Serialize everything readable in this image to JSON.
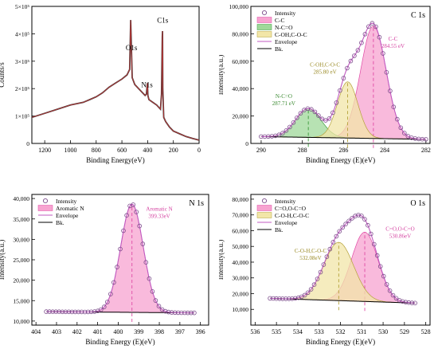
{
  "chart_data": [
    {
      "id": "survey",
      "type": "line",
      "xlabel": "Binding Energy(eV)",
      "ylabel": "Counts/s",
      "xlim": [
        1300,
        0
      ],
      "ylim": [
        0,
        500000
      ],
      "xticks": [
        1200,
        1000,
        800,
        600,
        400,
        200,
        0
      ],
      "yticks": [
        {
          "v": 0,
          "label": "0"
        },
        {
          "v": 100000,
          "label": "1×10⁵"
        },
        {
          "v": 200000,
          "label": "2×10⁵"
        },
        {
          "v": 300000,
          "label": "3×10⁵"
        },
        {
          "v": 400000,
          "label": "4×10⁵"
        },
        {
          "v": 500000,
          "label": "5×10⁵"
        }
      ],
      "colors": {
        "raw": "#404040",
        "fit": "#c03030"
      },
      "series": [
        {
          "x": [
            1300,
            1200,
            1100,
            1000,
            900,
            850,
            800,
            750,
            700,
            650,
            600,
            560,
            540,
            532,
            525,
            520,
            500,
            470,
            450,
            420,
            410,
            402,
            398,
            390,
            360,
            330,
            300,
            292,
            286,
            284,
            282,
            275,
            260,
            230,
            200,
            150,
            100,
            50,
            0
          ],
          "values": [
            95000,
            110000,
            125000,
            140000,
            150000,
            160000,
            170000,
            185000,
            205000,
            220000,
            235000,
            250000,
            270000,
            450000,
            330000,
            240000,
            215000,
            200000,
            190000,
            175000,
            180000,
            220000,
            175000,
            160000,
            150000,
            140000,
            125000,
            180000,
            390000,
            410000,
            200000,
            95000,
            80000,
            60000,
            45000,
            35000,
            25000,
            18000,
            12000
          ]
        }
      ],
      "annotations": [
        {
          "text": "C1s",
          "x": 283,
          "y": 440000
        },
        {
          "text": "O1s",
          "x": 525,
          "y": 340000
        },
        {
          "text": "N1s",
          "x": 405,
          "y": 205000
        }
      ]
    },
    {
      "id": "c1s",
      "type": "line",
      "title": "C 1s",
      "xlabel": "Binding Energy (E)(eV)",
      "ylabel": "Intensity(a.u.)",
      "xlim": [
        290.5,
        281.8
      ],
      "ylim": [
        0,
        100000
      ],
      "xticks": [
        290,
        288,
        286,
        284,
        282
      ],
      "yticks": [
        0,
        20000,
        40000,
        60000,
        80000,
        100000
      ],
      "legend": {
        "position": "top-left",
        "items": [
          "Intensity",
          "C-C",
          "N-C=O",
          "C-OH,C-O-C",
          "Envelope",
          "Bk."
        ]
      },
      "background": [
        [
          290,
          5000
        ],
        [
          282,
          3000
        ]
      ],
      "peaks": [
        {
          "name": "C-C",
          "center": 284.55,
          "height": 82000,
          "sigma": 0.62,
          "color": "#f7a3d0",
          "line": "#e04aa5"
        },
        {
          "name": "N-C=O",
          "center": 287.71,
          "height": 21000,
          "sigma": 0.62,
          "color": "#9fd89a",
          "line": "#3a9a3a"
        },
        {
          "name": "C-OH,C-O-C",
          "center": 285.8,
          "height": 41000,
          "sigma": 0.5,
          "color": "#f2e6a8",
          "line": "#b5a23a"
        }
      ],
      "labels": [
        {
          "lines": [
            "C-C",
            "284.55 eV"
          ],
          "x": 283.6,
          "y": 75000,
          "color": "#d43f9f"
        },
        {
          "lines": [
            "C-OH,C-O-C",
            "285.80 eV"
          ],
          "x": 286.9,
          "y": 56000,
          "color": "#9a8a25"
        },
        {
          "lines": [
            "N-C=O",
            "287.71 eV"
          ],
          "x": 288.9,
          "y": 33000,
          "color": "#3a8a30"
        }
      ]
    },
    {
      "id": "n1s",
      "type": "line",
      "title": "N 1s",
      "xlabel": "Binding Energy (E)(eV)",
      "ylabel": "Intensity(a.u.)",
      "xlim": [
        404.2,
        395.6
      ],
      "ylim": [
        9000,
        41000
      ],
      "xticks": [
        404,
        403,
        402,
        401,
        400,
        399,
        398,
        397,
        396
      ],
      "yticks": [
        10000,
        15000,
        20000,
        25000,
        30000,
        35000,
        40000
      ],
      "legend": {
        "position": "top-left",
        "items": [
          "Intensity",
          "Aromatic N",
          "Envelope",
          "Bk."
        ]
      },
      "background": [
        [
          403.5,
          12300
        ],
        [
          396.3,
          12000
        ]
      ],
      "peaks": [
        {
          "name": "Aromatic N",
          "center": 399.33,
          "height": 26500,
          "sigma": 0.55,
          "color": "#f7a3d0",
          "line": "#e04aa5"
        }
      ],
      "labels": [
        {
          "lines": [
            "Aromatic N",
            "399.33eV"
          ],
          "x": 398.0,
          "y": 37000,
          "color": "#d43f9f"
        }
      ]
    },
    {
      "id": "o1s",
      "type": "line",
      "title": "O 1s",
      "xlabel": "Binding Energy (E)(eV)",
      "ylabel": "Intensity(a.u.)",
      "xlim": [
        536.2,
        527.8
      ],
      "ylim": [
        0,
        83000
      ],
      "xticks": [
        536,
        535,
        534,
        533,
        532,
        531,
        530,
        529,
        528
      ],
      "yticks": [
        10000,
        20000,
        30000,
        40000,
        50000,
        60000,
        70000,
        80000
      ],
      "legend": {
        "position": "top-left",
        "items": [
          "Intensity",
          "C=O,O-C=O",
          "C-O-H,C-O-C",
          "Envelope",
          "Bk."
        ]
      },
      "background": [
        [
          535.3,
          17000
        ],
        [
          528.5,
          14000
        ]
      ],
      "peaks": [
        {
          "name": "C=O,O-C=O",
          "center": 530.86,
          "height": 44000,
          "sigma": 0.62,
          "color": "#f7a3d0",
          "line": "#e04aa5"
        },
        {
          "name": "C-O-H,C-O-C",
          "center": 532.08,
          "height": 37000,
          "sigma": 0.7,
          "color": "#f2e6a8",
          "line": "#b5a23a"
        }
      ],
      "labels": [
        {
          "lines": [
            "C=O,O-C=O",
            "530.86eV"
          ],
          "x": 529.2,
          "y": 60000,
          "color": "#d43f9f"
        },
        {
          "lines": [
            "C-O-H,C-O-C",
            "532.08eV"
          ],
          "x": 533.4,
          "y": 46000,
          "color": "#9a8a25"
        }
      ]
    }
  ]
}
